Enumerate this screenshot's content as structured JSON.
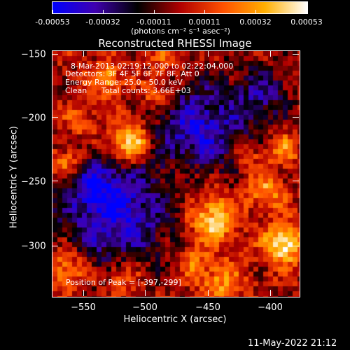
{
  "colorbar": {
    "tick_labels": [
      "-0.00053",
      "-0.00032",
      "-0.00011",
      "0.00011",
      "0.00032",
      "0.00053"
    ],
    "units": "(photons cm⁻² s⁻¹ asec⁻²)",
    "colors": [
      "#0000ff",
      "#4000b0",
      "#000000",
      "#b00000",
      "#ff5000",
      "#ffb000",
      "#ffffff"
    ]
  },
  "image_title": "Reconstructed RHESSI Image",
  "info": {
    "time_range": "8-Mar-2013 02:19:12.000 to 02:22:04.000",
    "detectors": "Detectors: 3F 4F 5F 6F 7F 8F, Att 0",
    "energy_range": "Energy Range: 25.0 - 50.0 keV",
    "method": "Clean",
    "total_counts": "Total counts: 3.66E+03"
  },
  "peak_text": "Position of Peak = [-397,-299]",
  "axes": {
    "xlabel": "Heliocentric X (arcsec)",
    "ylabel": "Heliocentric Y (arcsec)",
    "x_ticks": [
      "−550",
      "−500",
      "−450",
      "−400"
    ],
    "y_ticks": [
      "−150",
      "−200",
      "−250",
      "−300"
    ]
  },
  "footer_date": "11-May-2022 21:12"
}
